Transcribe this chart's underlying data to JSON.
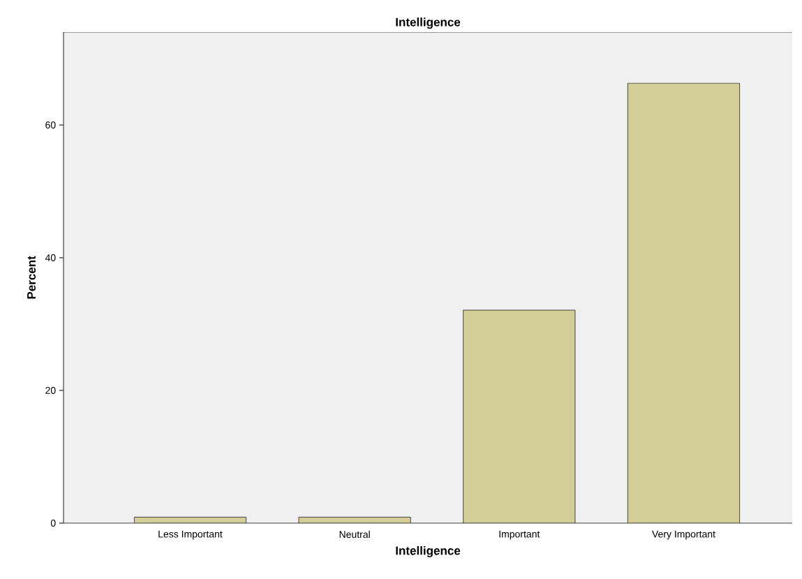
{
  "chart_data": {
    "type": "bar",
    "title": "Intelligence",
    "xlabel": "Intelligence",
    "ylabel": "Percent",
    "categories": [
      "Less Important",
      "Neutral",
      "Important",
      "Very Important"
    ],
    "values": [
      0.9,
      0.9,
      32.1,
      66.3
    ],
    "color": "#d3ce97",
    "ylim": [
      0,
      74
    ],
    "yticks": [
      0,
      20,
      40,
      60
    ],
    "grid": false
  }
}
